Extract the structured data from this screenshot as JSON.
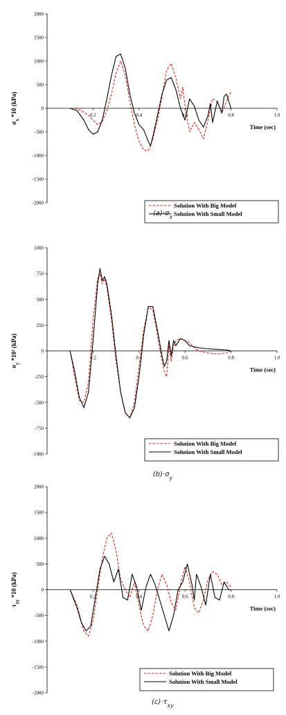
{
  "chart_data": [
    {
      "type": "line",
      "ylabel": "σx *10 (kPa)",
      "xlabel": "Time (sec)",
      "caption": "(a)·σx",
      "ylim": [
        -2000,
        2000
      ],
      "yticks": [
        2000,
        1500,
        1000,
        500,
        0,
        -500,
        -1000,
        -1500,
        -2000
      ],
      "yticklabels": [
        "2000",
        "1500",
        "1000",
        "500",
        "0",
        "-500",
        "-1000",
        "-1500",
        "-2000"
      ],
      "xlim": [
        0,
        1.0
      ],
      "xticks": [
        0.2,
        0.4,
        0.6,
        0.8,
        1.0
      ],
      "xticklabels": [
        "0.2",
        "0.4",
        "0.6",
        "0.8",
        "1.0"
      ],
      "legend_position": "bottom-right",
      "series": [
        {
          "name": "Solution With Big Model",
          "color": "#e0201b",
          "dash": "dashed",
          "x": [
            0.12,
            0.15,
            0.18,
            0.2,
            0.22,
            0.24,
            0.26,
            0.28,
            0.3,
            0.32,
            0.34,
            0.36,
            0.38,
            0.4,
            0.42,
            0.44,
            0.46,
            0.48,
            0.5,
            0.52,
            0.54,
            0.56,
            0.58,
            0.59,
            0.6,
            0.62,
            0.64,
            0.66,
            0.68,
            0.7,
            0.72,
            0.74,
            0.76,
            0.78,
            0.8
          ],
          "y": [
            0,
            -50,
            -150,
            -250,
            -350,
            -280,
            -50,
            300,
            750,
            1000,
            700,
            150,
            -350,
            -700,
            -880,
            -900,
            -650,
            -250,
            250,
            800,
            950,
            650,
            200,
            450,
            50,
            -500,
            -300,
            -450,
            -650,
            -250,
            200,
            150,
            -100,
            150,
            350
          ]
        },
        {
          "name": "Solution With Small Model",
          "color": "#000000",
          "dash": "solid",
          "x": [
            0.1,
            0.13,
            0.16,
            0.18,
            0.2,
            0.22,
            0.24,
            0.26,
            0.28,
            0.3,
            0.32,
            0.34,
            0.36,
            0.38,
            0.4,
            0.42,
            0.44,
            0.45,
            0.46,
            0.48,
            0.5,
            0.52,
            0.54,
            0.56,
            0.58,
            0.6,
            0.62,
            0.64,
            0.66,
            0.68,
            0.7,
            0.71,
            0.72,
            0.74,
            0.76,
            0.77,
            0.78,
            0.8
          ],
          "y": [
            0,
            -50,
            -250,
            -450,
            -550,
            -500,
            -250,
            200,
            700,
            1100,
            1150,
            850,
            300,
            -100,
            -350,
            -450,
            -700,
            -800,
            -600,
            -150,
            300,
            600,
            650,
            400,
            0,
            -250,
            200,
            50,
            -250,
            -400,
            -150,
            100,
            -300,
            150,
            -100,
            250,
            300,
            0
          ]
        }
      ]
    },
    {
      "type": "line",
      "ylabel": "σy *10² (kPa)",
      "xlabel": "Time (sec)",
      "caption": "(b)·σy",
      "ylim": [
        -1000,
        1000
      ],
      "yticks": [
        1000,
        750,
        500,
        250,
        0,
        -250,
        -500,
        -750,
        -1000
      ],
      "yticklabels": [
        "1000",
        "750",
        "500",
        "250",
        "0",
        "-250",
        "-500",
        "-750",
        "-1000"
      ],
      "xlim": [
        0,
        1.0
      ],
      "xticks": [
        0.2,
        0.4,
        0.6,
        0.8,
        1.0
      ],
      "xticklabels": [
        "0.2",
        "0.4",
        "0.6",
        "0.8",
        "1.0"
      ],
      "legend_position": "bottom-right",
      "series": [
        {
          "name": "Solution With Big Model",
          "color": "#e0201b",
          "dash": "dashed",
          "x": [
            0.1,
            0.12,
            0.14,
            0.16,
            0.18,
            0.2,
            0.22,
            0.23,
            0.24,
            0.25,
            0.26,
            0.28,
            0.3,
            0.32,
            0.34,
            0.36,
            0.38,
            0.4,
            0.42,
            0.44,
            0.46,
            0.48,
            0.5,
            0.51,
            0.52,
            0.53,
            0.54,
            0.55,
            0.56,
            0.58,
            0.6,
            0.62,
            0.64,
            0.66,
            0.7,
            0.74,
            0.78,
            0.8
          ],
          "y": [
            0,
            -250,
            -480,
            -500,
            -300,
            300,
            700,
            750,
            650,
            700,
            620,
            300,
            -100,
            -400,
            -600,
            -650,
            -500,
            -150,
            200,
            420,
            400,
            150,
            -100,
            -200,
            -250,
            50,
            -100,
            50,
            100,
            120,
            100,
            80,
            30,
            0,
            -20,
            -30,
            -20,
            0
          ]
        },
        {
          "name": "Solution With Small Model",
          "color": "#000000",
          "dash": "solid",
          "x": [
            0.1,
            0.12,
            0.14,
            0.16,
            0.18,
            0.2,
            0.22,
            0.23,
            0.24,
            0.25,
            0.26,
            0.28,
            0.3,
            0.32,
            0.34,
            0.36,
            0.38,
            0.4,
            0.42,
            0.44,
            0.46,
            0.48,
            0.5,
            0.51,
            0.52,
            0.53,
            0.54,
            0.55,
            0.56,
            0.58,
            0.6,
            0.62,
            0.66,
            0.7,
            0.74,
            0.78,
            0.8
          ],
          "y": [
            0,
            -200,
            -450,
            -550,
            -400,
            100,
            650,
            800,
            680,
            720,
            650,
            350,
            -50,
            -400,
            -600,
            -650,
            -550,
            -250,
            150,
            430,
            430,
            200,
            -50,
            -150,
            -100,
            100,
            -50,
            100,
            50,
            120,
            100,
            50,
            30,
            20,
            15,
            10,
            0
          ]
        }
      ]
    },
    {
      "type": "line",
      "ylabel": "τxy *10 (kPa)",
      "xlabel": "Time (sec)",
      "caption": "(c)·τxy",
      "ylim": [
        -2000,
        2000
      ],
      "yticks": [
        2000,
        1500,
        1000,
        500,
        0,
        -500,
        -1000,
        -1500,
        -2000
      ],
      "yticklabels": [
        "2000",
        "1500",
        "1000",
        "500",
        "0",
        "-500",
        "-1000",
        "-1500",
        "-2000"
      ],
      "xlim": [
        0,
        1.0
      ],
      "xticks": [
        0.2,
        0.4,
        0.6,
        0.8,
        1.0
      ],
      "xticklabels": [
        "0.2",
        "0.4",
        "0.6",
        "0.8",
        "1.0"
      ],
      "legend_position": "bottom-right",
      "series": [
        {
          "name": "Solution With Big Model",
          "color": "#e0201b",
          "dash": "dashed",
          "x": [
            0.1,
            0.13,
            0.16,
            0.18,
            0.2,
            0.22,
            0.24,
            0.26,
            0.28,
            0.3,
            0.32,
            0.34,
            0.36,
            0.38,
            0.4,
            0.42,
            0.44,
            0.46,
            0.48,
            0.5,
            0.52,
            0.54,
            0.56,
            0.58,
            0.6,
            0.62,
            0.64,
            0.66,
            0.68,
            0.7,
            0.72,
            0.74,
            0.76,
            0.78,
            0.8
          ],
          "y": [
            0,
            -300,
            -800,
            -900,
            -600,
            0,
            600,
            1000,
            1100,
            750,
            200,
            0,
            -150,
            150,
            -300,
            -700,
            -800,
            -500,
            0,
            300,
            100,
            -250,
            -400,
            100,
            450,
            150,
            -350,
            -450,
            -200,
            200,
            350,
            300,
            100,
            150,
            50
          ]
        },
        {
          "name": "Solution With Small Model",
          "color": "#000000",
          "dash": "solid",
          "x": [
            0.1,
            0.13,
            0.15,
            0.17,
            0.19,
            0.21,
            0.23,
            0.25,
            0.27,
            0.29,
            0.31,
            0.33,
            0.35,
            0.37,
            0.39,
            0.41,
            0.43,
            0.45,
            0.47,
            0.49,
            0.51,
            0.53,
            0.55,
            0.57,
            0.59,
            0.61,
            0.63,
            0.64,
            0.65,
            0.67,
            0.69,
            0.71,
            0.73,
            0.75,
            0.77,
            0.79,
            0.8
          ],
          "y": [
            0,
            -350,
            -650,
            -800,
            -700,
            -150,
            400,
            650,
            500,
            150,
            400,
            -150,
            -200,
            300,
            50,
            -400,
            50,
            300,
            100,
            -200,
            -500,
            -800,
            -500,
            0,
            150,
            500,
            100,
            -200,
            300,
            50,
            -300,
            300,
            -150,
            -200,
            150,
            0,
            0
          ]
        }
      ]
    }
  ]
}
